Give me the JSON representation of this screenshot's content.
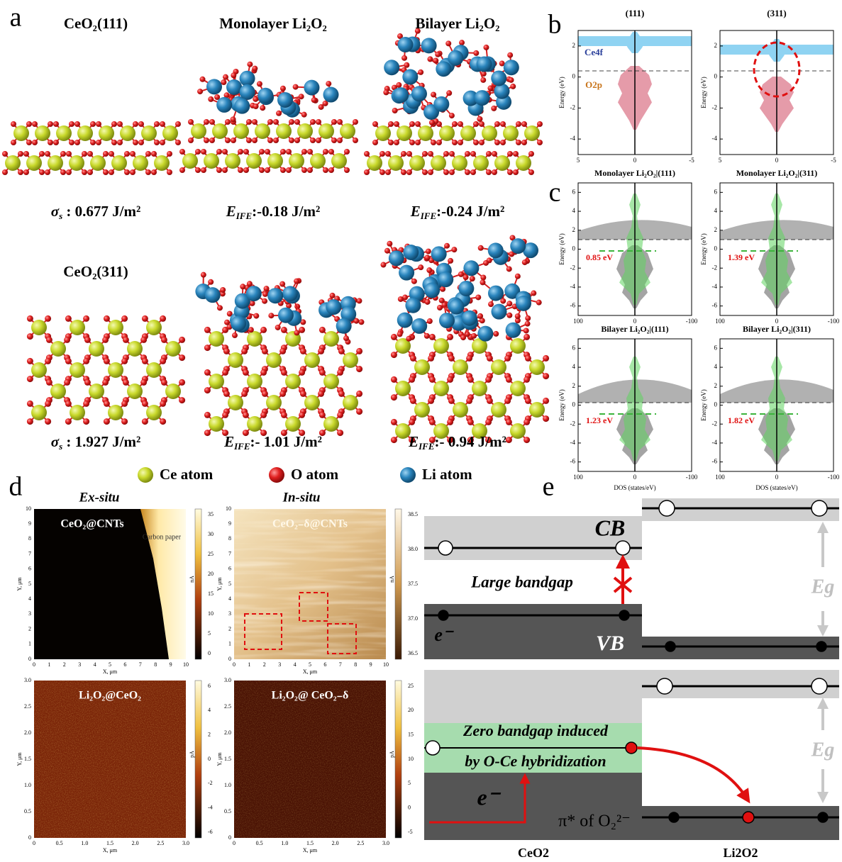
{
  "panel_a": {
    "letter": "a",
    "structures": [
      {
        "title": "CeO₂(111)",
        "energy": {
          "symbol": "σ",
          "subscript": "s",
          "value": " : 0.677 J/m²"
        }
      },
      {
        "title": "Monolayer Li₂O₂",
        "energy": {
          "symbol": "E",
          "subscript": "IFE",
          "value": ":-0.18 J/m²"
        }
      },
      {
        "title": "Bilayer Li₂O₂",
        "energy": {
          "symbol": "E",
          "subscript": "IFE",
          "value": ":-0.24 J/m²"
        }
      },
      {
        "title": "CeO₂(311)",
        "energy": {
          "symbol": "σ",
          "subscript": "s",
          "value": " : 1.927 J/m²"
        }
      },
      {
        "energy": {
          "symbol": "E",
          "subscript": "IFE",
          "value": ":- 1.01 J/m²"
        }
      },
      {
        "energy": {
          "symbol": "E",
          "subscript": "IFE",
          "value": ":- 0.94 J/m²"
        }
      }
    ],
    "legend": [
      "Ce atom",
      "O atom",
      "Li atom"
    ]
  },
  "panel_b": {
    "letter": "b",
    "y_label": "Energy (eV)",
    "yticks": [
      "2",
      "0",
      "-2",
      "-4"
    ],
    "xticks": [
      "5",
      "0",
      "-5"
    ],
    "plots": [
      {
        "title": "(111)",
        "labels": [
          "Ce4f",
          "O2p"
        ]
      },
      {
        "title": "(311)"
      }
    ]
  },
  "panel_c": {
    "letter": "c",
    "y_label": "Energy (eV)",
    "x_label": "DOS (states/eV)",
    "yticks": [
      "6",
      "4",
      "2",
      "0",
      "-2",
      "-4",
      "-6"
    ],
    "xticks": [
      "100",
      "0",
      "-100"
    ],
    "plots": [
      {
        "title": "Monolayer Li₂O₂|(111)",
        "gap": "0.85 eV"
      },
      {
        "title": "Monolayer Li₂O₂|(311)",
        "gap": "1.39 eV"
      },
      {
        "title": "Bilayer Li₂O₂|(111)",
        "gap": "1.23 eV"
      },
      {
        "title": "Bilayer Li₂O₂|(311)",
        "gap": "1.82 eV"
      }
    ]
  },
  "panel_d": {
    "letter": "d",
    "headers": [
      "Ex-situ",
      "In-situ"
    ],
    "images": [
      {
        "labels": [
          "CeO₂@CNTs",
          "Carbon paper"
        ],
        "x_label": "X, μm",
        "y_label": "Y, μm",
        "xticks": [
          "0",
          "1",
          "2",
          "3",
          "4",
          "5",
          "6",
          "7",
          "8",
          "9",
          "10"
        ],
        "yticks": [
          "0",
          "1",
          "2",
          "3",
          "4",
          "5",
          "6",
          "7",
          "8",
          "9",
          "10"
        ],
        "colorbar": {
          "unit": "nA",
          "ticks": [
            "35",
            "30",
            "25",
            "20",
            "15",
            "10",
            "5",
            "0"
          ]
        }
      },
      {
        "labels": [
          "CeO₂₋δ@CNTs"
        ],
        "x_label": "X, μm",
        "y_label": "Y, μm",
        "xticks": [
          "0",
          "1",
          "2",
          "3",
          "4",
          "5",
          "6",
          "7",
          "8",
          "9",
          "10"
        ],
        "yticks": [
          "0",
          "1",
          "2",
          "3",
          "4",
          "5",
          "6",
          "7",
          "8",
          "9",
          "10"
        ],
        "colorbar": {
          "unit": "nA",
          "ticks": [
            "38.5",
            "38.0",
            "37.5",
            "37.0",
            "36.5"
          ]
        }
      },
      {
        "labels": [
          "Li₂O₂@CeO₂"
        ],
        "x_label": "X, μm",
        "y_label": "Y, μm",
        "xticks": [
          "0",
          "0.5",
          "1.0",
          "1.5",
          "2.0",
          "2.5",
          "3.0"
        ],
        "yticks": [
          "0",
          "0.5",
          "1.0",
          "1.5",
          "2.0",
          "2.5",
          "3.0"
        ],
        "colorbar": {
          "unit": "pA",
          "ticks": [
            "6",
            "4",
            "2",
            "0",
            "-2",
            "-4",
            "-6"
          ]
        }
      },
      {
        "labels": [
          "Li₂O₂@ CeO₂₋δ"
        ],
        "x_label": "X, μm",
        "y_label": "Y, μm",
        "xticks": [
          "0",
          "0.5",
          "1.0",
          "1.5",
          "2.0",
          "2.5",
          "3.0"
        ],
        "yticks": [
          "0",
          "0.5",
          "1.0",
          "1.5",
          "2.0",
          "2.5",
          "3.0"
        ],
        "colorbar": {
          "unit": "pA",
          "ticks": [
            "25",
            "20",
            "15",
            "10",
            "5",
            "0",
            "-5"
          ]
        }
      }
    ]
  },
  "panel_e": {
    "letter": "e",
    "top": {
      "cb": "CB",
      "gap": "Large bandgap",
      "electron": "e⁻",
      "vb": "VB",
      "eg": "Eg"
    },
    "bottom": {
      "line1": "Zero bandgap induced",
      "line2": "by O-Ce hybridization",
      "electron": "e⁻",
      "pi": "π* of O₂²⁻",
      "eg": "Eg"
    },
    "materials": [
      "CeO2",
      "Li2O2"
    ]
  }
}
